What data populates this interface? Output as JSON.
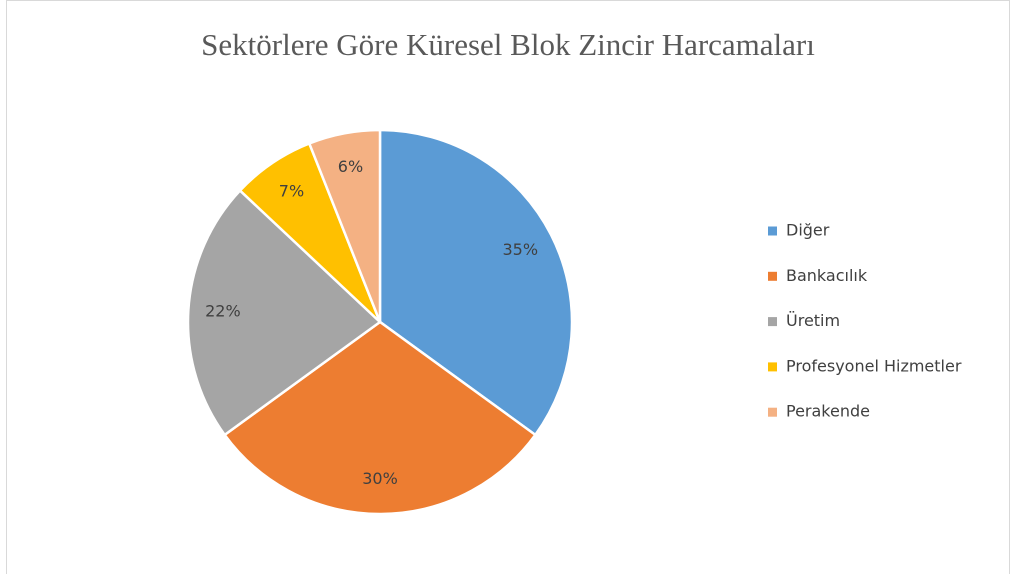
{
  "chart_data": {
    "type": "pie",
    "title": "Sektörlere Göre Küresel Blok Zincir Harcamaları",
    "categories": [
      "Diğer",
      "Bankacılık",
      "Üretim",
      "Profesyonel Hizmetler",
      "Perakende"
    ],
    "values": [
      35,
      30,
      22,
      7,
      6
    ],
    "value_labels": [
      "35%",
      "30%",
      "22%",
      "7%",
      "6%"
    ],
    "colors": [
      "#5b9bd5",
      "#ed7d31",
      "#a5a5a5",
      "#ffc000",
      "#f4b183"
    ],
    "legend": "right"
  }
}
